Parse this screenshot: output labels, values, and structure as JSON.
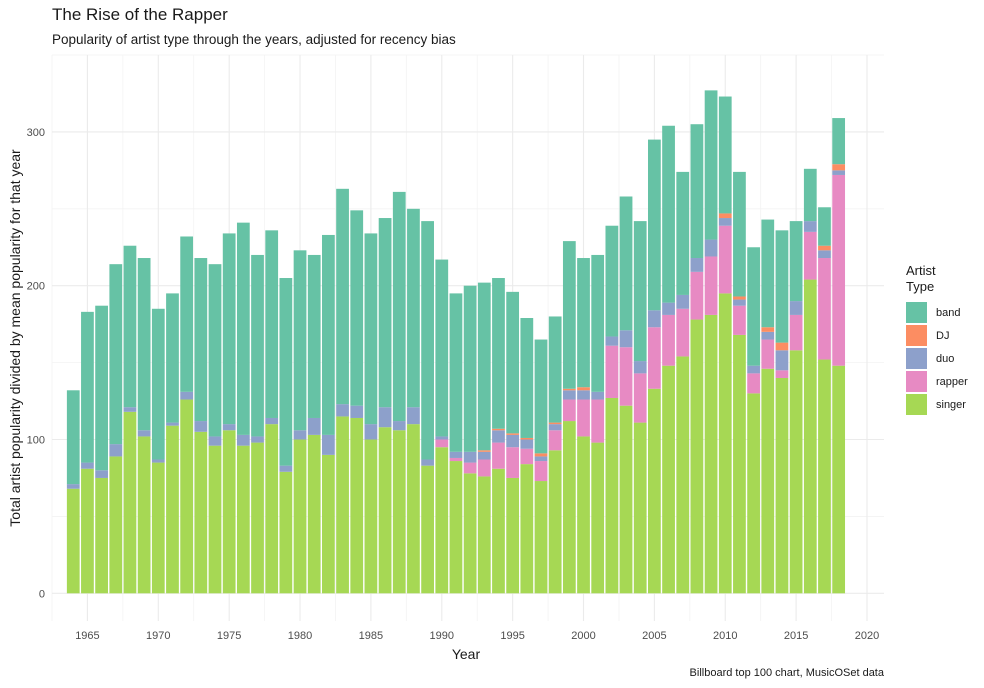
{
  "title": "The Rise of the Rapper",
  "subtitle": "Popularity of artist type through the years, adjusted for recency bias",
  "caption": "Billboard top 100 chart, MusicOSet data",
  "chart_data": {
    "type": "bar",
    "stacked": true,
    "xlabel": "Year",
    "ylabel": "Total artist popularity divided by mean popularity for that year",
    "legend_title": "Artist\nType",
    "legend_position": "right",
    "grid": true,
    "xlim": [
      1962.5,
      2021.2
    ],
    "ylim": [
      -18,
      350
    ],
    "x_ticks": [
      1965,
      1970,
      1975,
      1980,
      1985,
      1990,
      1995,
      2000,
      2005,
      2010,
      2015,
      2020
    ],
    "y_ticks": [
      0,
      100,
      200,
      300
    ],
    "categories": [
      1964,
      1965,
      1966,
      1967,
      1968,
      1969,
      1970,
      1971,
      1972,
      1973,
      1974,
      1975,
      1976,
      1977,
      1978,
      1979,
      1980,
      1981,
      1982,
      1983,
      1984,
      1985,
      1986,
      1987,
      1988,
      1989,
      1990,
      1991,
      1992,
      1993,
      1994,
      1995,
      1996,
      1997,
      1998,
      1999,
      2000,
      2001,
      2002,
      2003,
      2004,
      2005,
      2006,
      2007,
      2008,
      2009,
      2010,
      2011,
      2012,
      2013,
      2014,
      2015,
      2016,
      2017,
      2018
    ],
    "series": [
      {
        "name": "singer",
        "color": "#a6d854",
        "values": [
          68,
          81,
          75,
          89,
          118,
          102,
          85,
          109,
          126,
          105,
          96,
          106,
          96,
          98,
          110,
          79,
          100,
          103,
          90,
          115,
          114,
          100,
          108,
          106,
          110,
          83,
          95,
          86,
          78,
          76,
          81,
          75,
          84,
          73,
          93,
          112,
          102,
          98,
          127,
          122,
          111,
          133,
          148,
          154,
          178,
          181,
          195,
          168,
          130,
          146,
          140,
          158,
          204,
          152,
          148
        ]
      },
      {
        "name": "rapper",
        "color": "#e78ac3",
        "values": [
          0,
          0,
          0,
          0,
          0,
          0,
          0,
          0,
          0,
          0,
          0,
          0,
          0,
          0,
          0,
          0,
          0,
          0,
          0,
          0,
          0,
          0,
          0,
          0,
          0,
          0,
          5,
          2,
          7,
          11,
          17,
          20,
          10,
          13,
          13,
          14,
          24,
          28,
          34,
          38,
          32,
          40,
          33,
          31,
          31,
          38,
          44,
          19,
          13,
          19,
          5,
          23,
          31,
          66,
          124
        ]
      },
      {
        "name": "duo",
        "color": "#8da0cb",
        "values": [
          3,
          4,
          5,
          8,
          3,
          4,
          2,
          2,
          5,
          7,
          6,
          4,
          7,
          4,
          4,
          4,
          6,
          11,
          13,
          8,
          8,
          10,
          13,
          6,
          11,
          4,
          2,
          4,
          7,
          5,
          8,
          8,
          6,
          3,
          4,
          6,
          6,
          5,
          6,
          11,
          8,
          11,
          8,
          9,
          9,
          11,
          5,
          4,
          5,
          5,
          13,
          9,
          7,
          5,
          3
        ]
      },
      {
        "name": "DJ",
        "color": "#fc8d62",
        "values": [
          0,
          0,
          0,
          0,
          0,
          0,
          0,
          0,
          0,
          0,
          0,
          0,
          0,
          0,
          0,
          0,
          0,
          0,
          0,
          0,
          0,
          0,
          0,
          0,
          0,
          0,
          0,
          0,
          0,
          1,
          1,
          1,
          1,
          2,
          1,
          1,
          2,
          0,
          0,
          0,
          0,
          0,
          0,
          0,
          0,
          0,
          3,
          2,
          0,
          3,
          5,
          0,
          0,
          3,
          4
        ]
      },
      {
        "name": "band",
        "color": "#66c2a5",
        "values": [
          61,
          98,
          107,
          117,
          105,
          112,
          98,
          84,
          101,
          106,
          112,
          124,
          138,
          118,
          122,
          122,
          117,
          106,
          130,
          140,
          127,
          124,
          123,
          149,
          129,
          155,
          115,
          103,
          108,
          109,
          98,
          92,
          78,
          74,
          69,
          96,
          84,
          89,
          72,
          87,
          91,
          111,
          115,
          80,
          87,
          97,
          76,
          81,
          77,
          70,
          73,
          52,
          34,
          25,
          30
        ]
      }
    ]
  }
}
